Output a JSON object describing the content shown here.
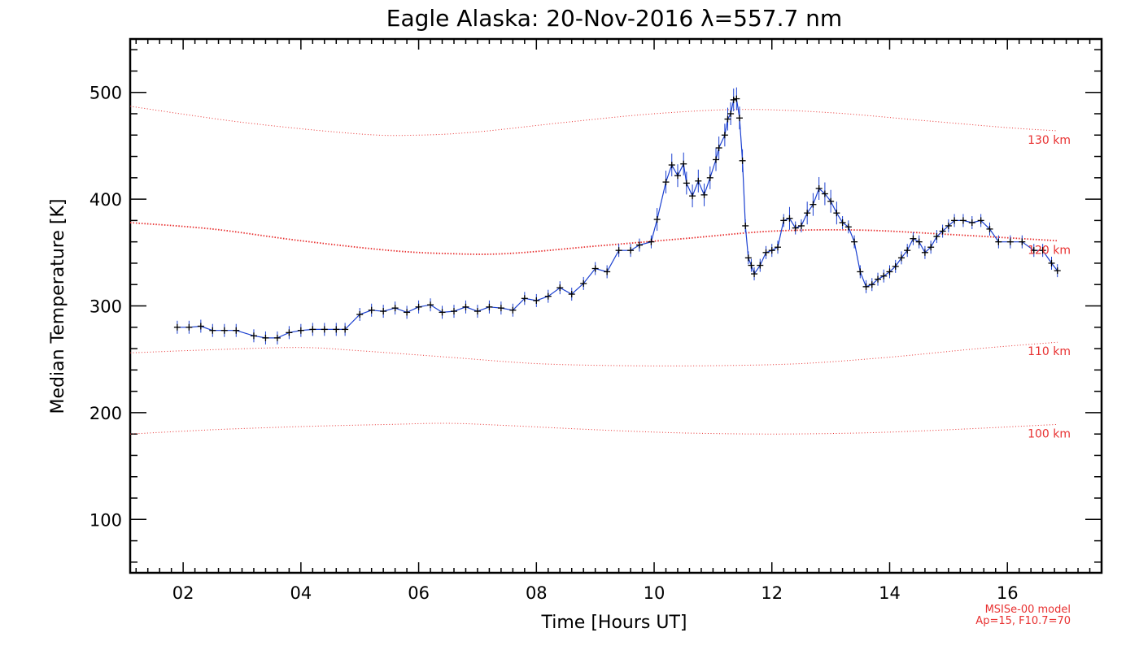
{
  "chart_data": {
    "type": "line",
    "title": "Eagle Alaska: 20-Nov-2016 λ=557.7 nm",
    "xlabel": "Time [Hours UT]",
    "ylabel": "Median Temperature [K]",
    "xlim": [
      1.1,
      17.6
    ],
    "ylim": [
      50,
      550
    ],
    "x_tick_labels": [
      "02",
      "04",
      "06",
      "08",
      "10",
      "12",
      "14",
      "16"
    ],
    "y_tick_labels": [
      "100",
      "200",
      "300",
      "400",
      "500"
    ],
    "grid": false,
    "colors": {
      "measurement_line": "#1a3fd0",
      "markers": "#000000",
      "model_lines": "#e83030"
    },
    "series": [
      {
        "points": [
          [
            1.9,
            280
          ],
          [
            2.1,
            280
          ],
          [
            2.3,
            281
          ],
          [
            2.5,
            277
          ],
          [
            2.7,
            277
          ],
          [
            2.9,
            277
          ],
          [
            3.2,
            272
          ],
          [
            3.4,
            270
          ],
          [
            3.6,
            270
          ],
          [
            3.8,
            275
          ],
          [
            4.0,
            277
          ],
          [
            4.2,
            278
          ],
          [
            4.4,
            278
          ],
          [
            4.6,
            278
          ],
          [
            4.75,
            278
          ],
          [
            5.0,
            292
          ],
          [
            5.2,
            296
          ],
          [
            5.4,
            295
          ],
          [
            5.6,
            298
          ],
          [
            5.8,
            294
          ],
          [
            6.0,
            299
          ],
          [
            6.2,
            301
          ],
          [
            6.4,
            294
          ],
          [
            6.6,
            295
          ],
          [
            6.8,
            299
          ],
          [
            7.0,
            295
          ],
          [
            7.2,
            299
          ],
          [
            7.4,
            298
          ],
          [
            7.6,
            296
          ],
          [
            7.8,
            307
          ],
          [
            8.0,
            305
          ],
          [
            8.2,
            309
          ],
          [
            8.4,
            317
          ],
          [
            8.6,
            311
          ],
          [
            8.8,
            321
          ],
          [
            9.0,
            335
          ],
          [
            9.2,
            332
          ],
          [
            9.4,
            352
          ],
          [
            9.6,
            352
          ],
          [
            9.75,
            357
          ],
          [
            9.95,
            360
          ],
          [
            10.05,
            381
          ],
          [
            10.2,
            416
          ],
          [
            10.3,
            432
          ],
          [
            10.4,
            422
          ],
          [
            10.5,
            433
          ],
          [
            10.55,
            415
          ],
          [
            10.65,
            403
          ],
          [
            10.75,
            417
          ],
          [
            10.85,
            404
          ],
          [
            10.95,
            420
          ],
          [
            11.05,
            437
          ],
          [
            11.1,
            448
          ],
          [
            11.2,
            460
          ],
          [
            11.25,
            475
          ],
          [
            11.3,
            480
          ],
          [
            11.35,
            493
          ],
          [
            11.4,
            494
          ],
          [
            11.45,
            476
          ],
          [
            11.5,
            436
          ],
          [
            11.55,
            375
          ],
          [
            11.6,
            345
          ],
          [
            11.65,
            338
          ],
          [
            11.7,
            330
          ],
          [
            11.8,
            338
          ],
          [
            11.9,
            350
          ],
          [
            12.0,
            352
          ],
          [
            12.1,
            355
          ],
          [
            12.2,
            380
          ],
          [
            12.3,
            382
          ],
          [
            12.4,
            373
          ],
          [
            12.5,
            375
          ],
          [
            12.6,
            387
          ],
          [
            12.7,
            395
          ],
          [
            12.8,
            410
          ],
          [
            12.9,
            405
          ],
          [
            13.0,
            398
          ],
          [
            13.1,
            387
          ],
          [
            13.2,
            378
          ],
          [
            13.3,
            374
          ],
          [
            13.4,
            360
          ],
          [
            13.5,
            332
          ],
          [
            13.6,
            318
          ],
          [
            13.7,
            320
          ],
          [
            13.8,
            325
          ],
          [
            13.9,
            328
          ],
          [
            14.0,
            332
          ],
          [
            14.1,
            337
          ],
          [
            14.2,
            345
          ],
          [
            14.3,
            352
          ],
          [
            14.4,
            363
          ],
          [
            14.5,
            360
          ],
          [
            14.6,
            350
          ],
          [
            14.7,
            355
          ],
          [
            14.8,
            365
          ],
          [
            14.9,
            370
          ],
          [
            15.0,
            375
          ],
          [
            15.1,
            380
          ],
          [
            15.25,
            380
          ],
          [
            15.4,
            378
          ],
          [
            15.55,
            380
          ],
          [
            15.7,
            372
          ],
          [
            15.85,
            360
          ],
          [
            16.05,
            360
          ],
          [
            16.25,
            360
          ],
          [
            16.45,
            352
          ],
          [
            16.6,
            352
          ],
          [
            16.75,
            340
          ],
          [
            16.85,
            333
          ]
        ]
      }
    ],
    "model_curves": [
      {
        "name": "130 km",
        "points": [
          [
            1.1,
            487
          ],
          [
            3.0,
            472
          ],
          [
            5.0,
            461
          ],
          [
            6.0,
            460
          ],
          [
            7.0,
            463
          ],
          [
            8.5,
            472
          ],
          [
            10.0,
            480
          ],
          [
            11.5,
            484
          ],
          [
            13.0,
            481
          ],
          [
            14.5,
            474
          ],
          [
            16.0,
            467
          ],
          [
            16.85,
            464
          ]
        ]
      },
      {
        "name": "120 km",
        "points": [
          [
            1.1,
            378
          ],
          [
            2.5,
            372
          ],
          [
            4.0,
            361
          ],
          [
            5.5,
            352
          ],
          [
            6.5,
            349
          ],
          [
            7.5,
            349
          ],
          [
            9.0,
            356
          ],
          [
            10.5,
            363
          ],
          [
            12.0,
            370
          ],
          [
            13.5,
            371
          ],
          [
            15.0,
            367
          ],
          [
            16.85,
            361
          ]
        ]
      },
      {
        "name": "110 km",
        "points": [
          [
            1.1,
            256
          ],
          [
            2.5,
            259
          ],
          [
            4.0,
            261
          ],
          [
            5.0,
            258
          ],
          [
            6.5,
            252
          ],
          [
            8.0,
            246
          ],
          [
            9.5,
            244
          ],
          [
            11.0,
            244
          ],
          [
            12.5,
            246
          ],
          [
            14.0,
            252
          ],
          [
            15.5,
            260
          ],
          [
            16.85,
            266
          ]
        ]
      },
      {
        "name": "100 km",
        "points": [
          [
            1.1,
            180
          ],
          [
            2.5,
            184
          ],
          [
            4.0,
            187
          ],
          [
            5.5,
            189
          ],
          [
            6.5,
            190
          ],
          [
            7.5,
            188
          ],
          [
            9.0,
            184
          ],
          [
            10.5,
            181
          ],
          [
            12.0,
            180
          ],
          [
            13.5,
            181
          ],
          [
            15.0,
            184
          ],
          [
            16.85,
            189
          ]
        ]
      }
    ],
    "model_labels": [
      "130 km",
      "120 km",
      "110 km",
      "100 km"
    ],
    "annotations": [
      "MSISe-00 model",
      "Ap=15, F10.7=70"
    ]
  }
}
